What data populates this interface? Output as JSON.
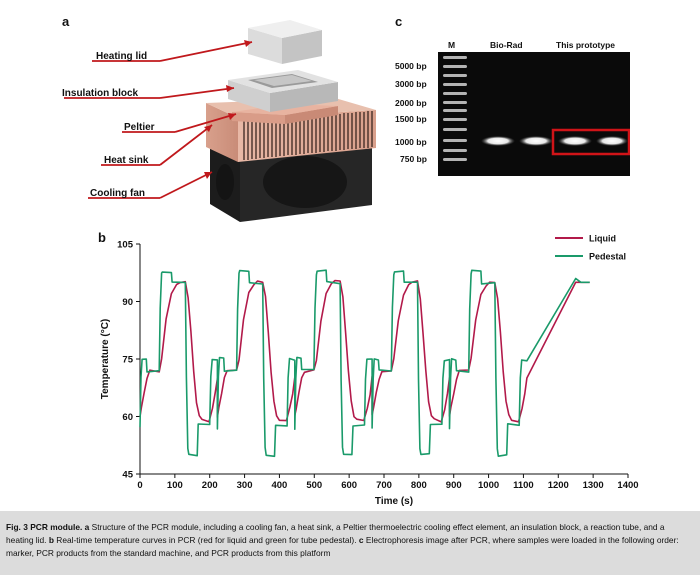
{
  "panel_a": {
    "letter": "a",
    "labels": [
      "Heating lid",
      "Insulation block",
      "Peltier",
      "Heat sink",
      "Cooling fan"
    ]
  },
  "panel_c": {
    "letter": "c",
    "lane_headers": {
      "marker": "M",
      "standard": "Bio-Rad",
      "prototype": "This prototype"
    },
    "ladder": [
      "5000 bp",
      "3000 bp",
      "2000 bp",
      "1500 bp",
      "1000 bp",
      "750 bp"
    ],
    "highlight_color": "#d01418"
  },
  "panel_b": {
    "letter": "b"
  },
  "chart_data": {
    "type": "line",
    "xlabel": "Time (s)",
    "ylabel": "Temperature (°C)",
    "xlim": [
      0,
      1400
    ],
    "ylim": [
      45,
      105
    ],
    "xticks": [
      0,
      100,
      200,
      300,
      400,
      500,
      600,
      700,
      800,
      900,
      1000,
      1100,
      1200,
      1300,
      1400
    ],
    "yticks": [
      45,
      60,
      75,
      90,
      105
    ],
    "legend_position": "top-right",
    "grid": false,
    "cycle_period": 222,
    "series": [
      {
        "name": "Liquid",
        "color": "#b21a4a",
        "cycle_points": [
          [
            0,
            60
          ],
          [
            4,
            62
          ],
          [
            12,
            66
          ],
          [
            20,
            70
          ],
          [
            28,
            72
          ],
          [
            55,
            72
          ],
          [
            62,
            75
          ],
          [
            75,
            85
          ],
          [
            90,
            92
          ],
          [
            105,
            94.5
          ],
          [
            115,
            95
          ],
          [
            130,
            95
          ],
          [
            138,
            91
          ],
          [
            146,
            82
          ],
          [
            154,
            72
          ],
          [
            162,
            64
          ],
          [
            170,
            60
          ],
          [
            178,
            59
          ],
          [
            198,
            59
          ],
          [
            208,
            62
          ],
          [
            216,
            66
          ],
          [
            222,
            70
          ]
        ]
      },
      {
        "name": "Pedestal",
        "color": "#1a9a6a",
        "cycle_points": [
          [
            0,
            57
          ],
          [
            3,
            70
          ],
          [
            6,
            75
          ],
          [
            18,
            75
          ],
          [
            20,
            72
          ],
          [
            55,
            72
          ],
          [
            58,
            88
          ],
          [
            62,
            97
          ],
          [
            64,
            98
          ],
          [
            90,
            98
          ],
          [
            92,
            95
          ],
          [
            130,
            95
          ],
          [
            133,
            70
          ],
          [
            137,
            52
          ],
          [
            140,
            50
          ],
          [
            164,
            50
          ],
          [
            167,
            58
          ],
          [
            200,
            58
          ],
          [
            203,
            70
          ],
          [
            207,
            75
          ],
          [
            222,
            75
          ]
        ]
      }
    ],
    "tail": {
      "Liquid": [
        [
          1250,
          95
        ],
        [
          1290,
          95
        ]
      ],
      "Pedestal": [
        [
          1250,
          96
        ],
        [
          1265,
          95
        ],
        [
          1290,
          95
        ]
      ]
    }
  },
  "caption": {
    "fig_label": "Fig. 3 PCR module.",
    "a_letter": "a",
    "a_text": " Structure of the PCR module, including a cooling fan, a heat sink, a Peltier thermoelectric cooling effect element, an insulation block, a reaction tube, and a heating lid. ",
    "b_letter": "b",
    "b_text": " Real-time temperature curves in PCR (red for liquid and green for tube pedestal). ",
    "c_letter": "c",
    "c_text": " Electrophoresis image after PCR, where samples were loaded in the following order: marker, PCR products from the standard machine, and PCR products from this platform"
  }
}
